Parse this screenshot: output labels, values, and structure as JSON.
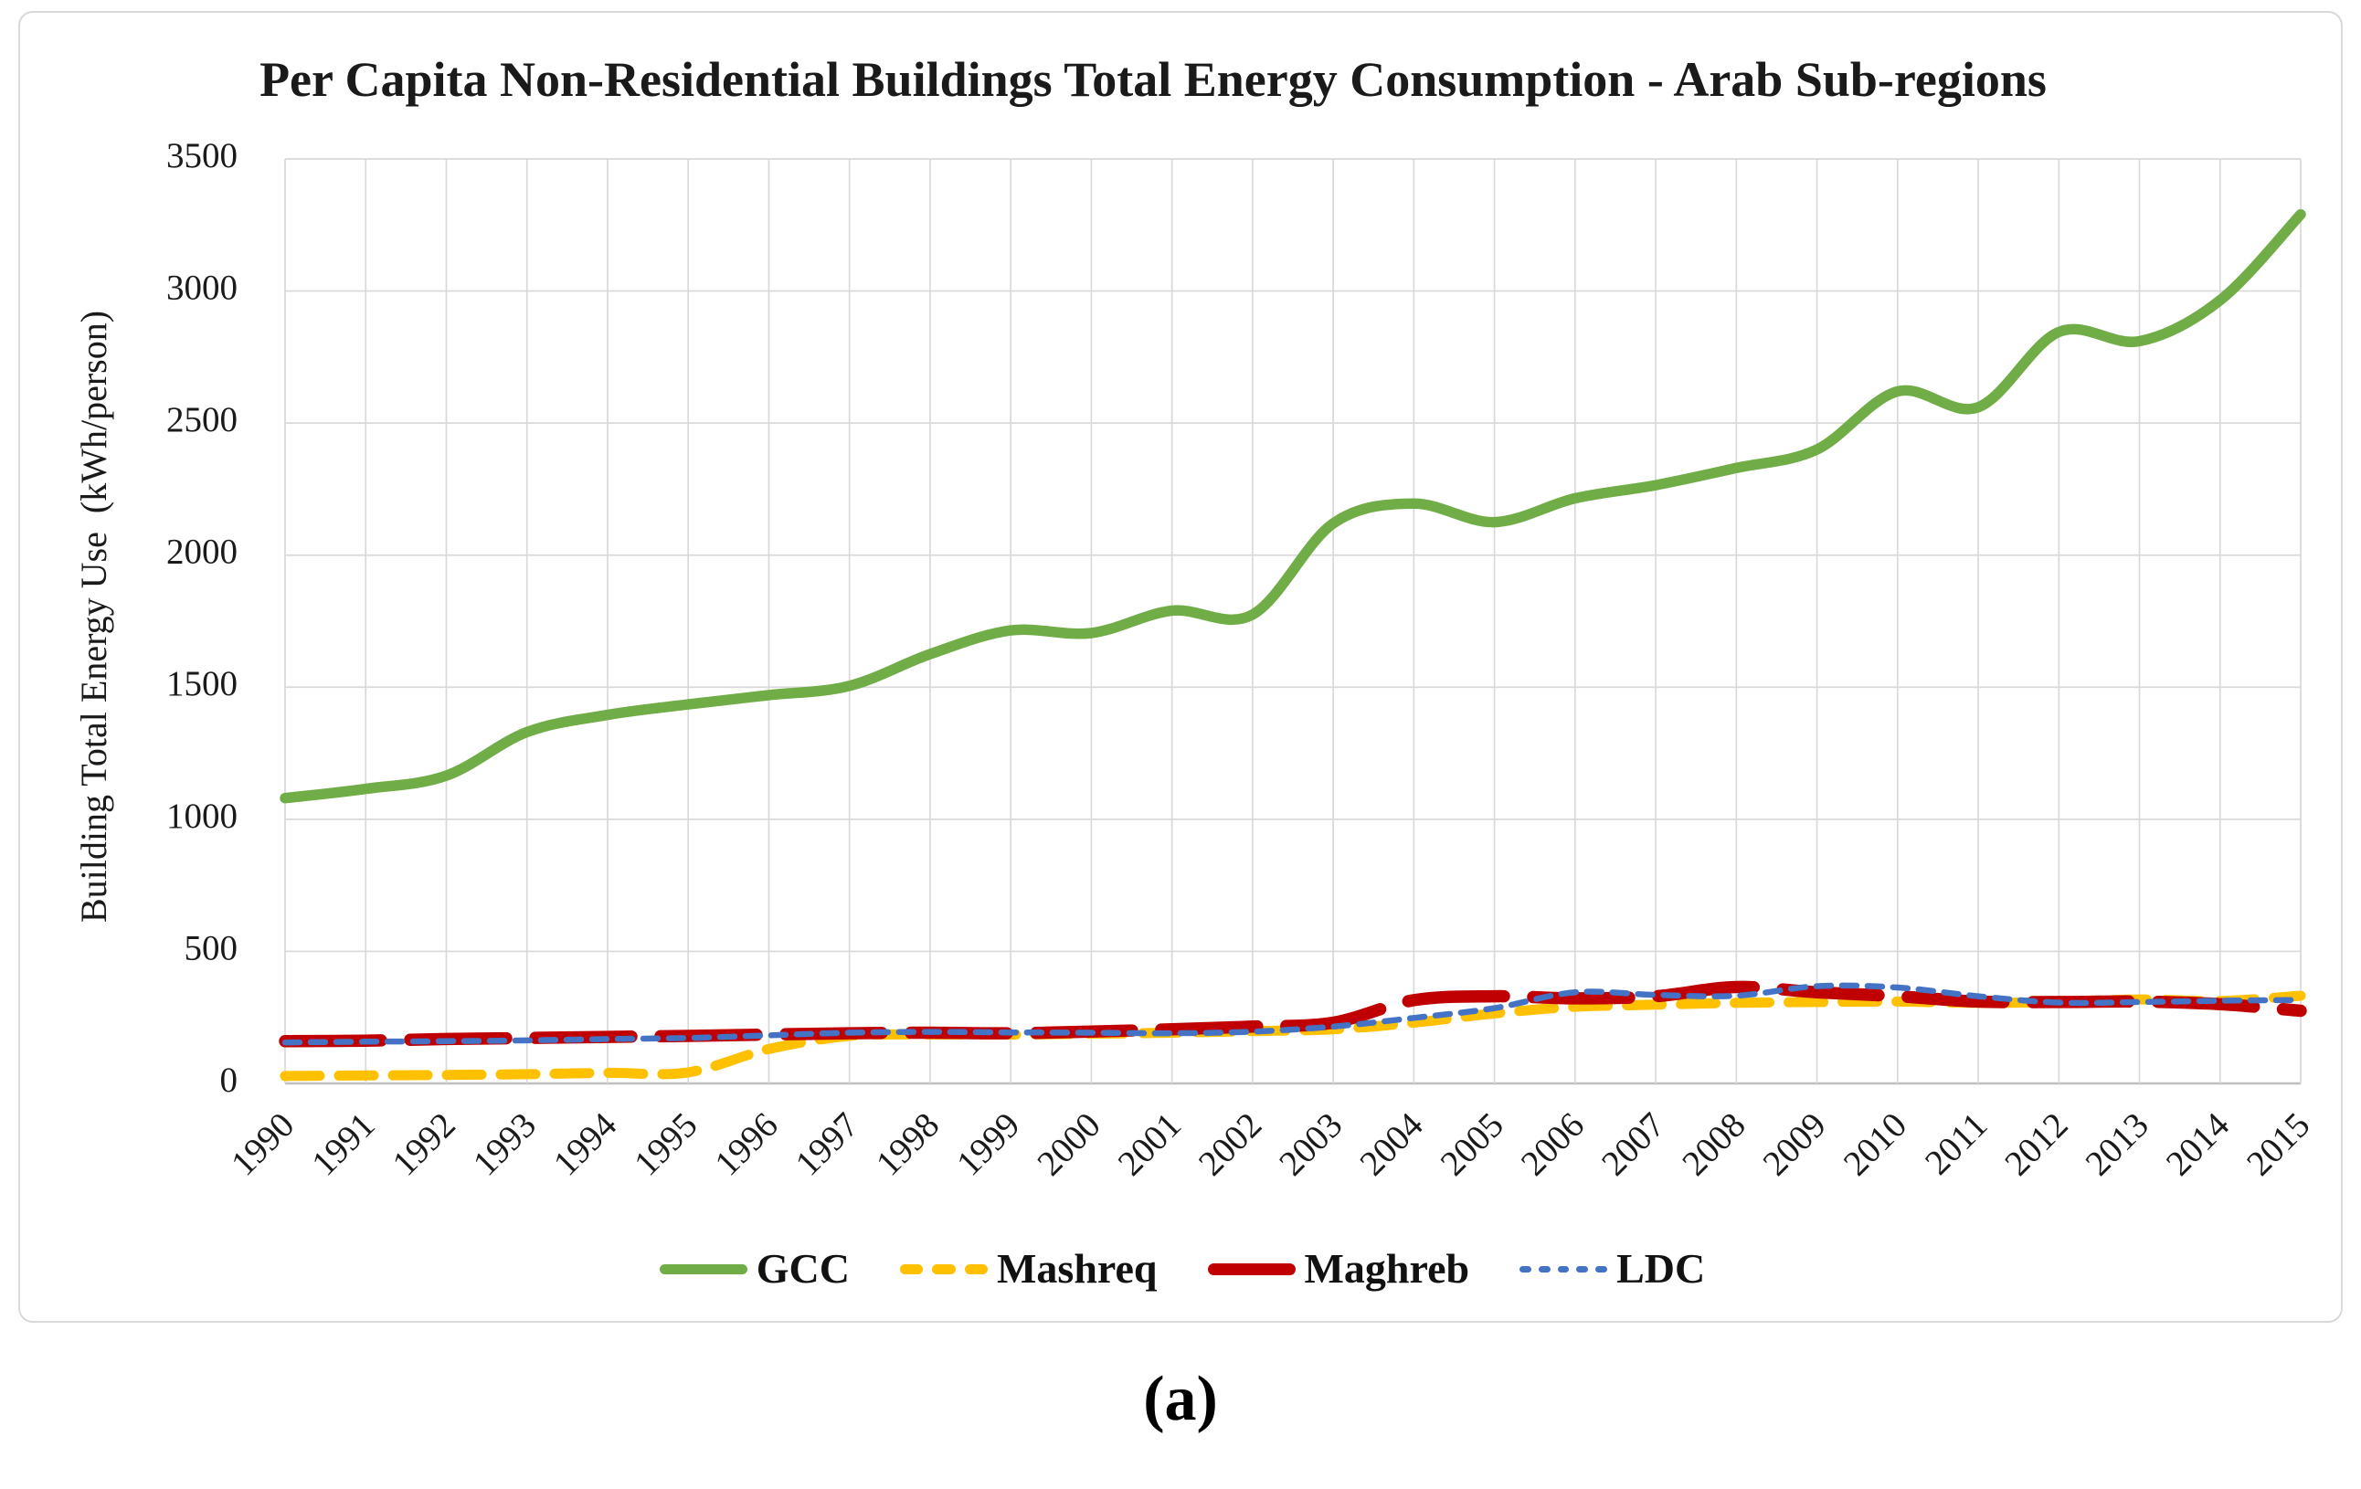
{
  "figure": {
    "caption": "(a)"
  },
  "chart": {
    "title": "Per Capita Non-Residential Buildings Total Energy Consumption - Arab Sub-regions",
    "y_axis_title": "Building Total Energy Use  (kWh/person)"
  },
  "colors": {
    "gridline": "#d9d9d9",
    "axis_line": "#bfbfbf",
    "text": "#1a1a1a",
    "background": "#ffffff",
    "gcc_green": "#70AD47",
    "mashreq_yellow": "#FFC000",
    "maghreb_red": "#C00000",
    "ldc_blue": "#4472C4"
  },
  "chart_data": {
    "type": "line",
    "title": "Per Capita Non-Residential Buildings Total Energy Consumption - Arab Sub-regions",
    "xlabel": "",
    "ylabel": "Building Total Energy Use (kWh/person)",
    "x_labels": [
      "1990",
      "1991",
      "1992",
      "1993",
      "1994",
      "1995",
      "1996",
      "1997",
      "1998",
      "1999",
      "2000",
      "2001",
      "2002",
      "2003",
      "2004",
      "2005",
      "2006",
      "2007",
      "2008",
      "2009",
      "2010",
      "2011",
      "2012",
      "2013",
      "2014",
      "2015"
    ],
    "ylim": [
      0,
      3500
    ],
    "ytick_step": 500,
    "grid": true,
    "legend_position": "bottom",
    "line_smoothing": true,
    "series": [
      {
        "name": "GCC",
        "color": "#70AD47",
        "line_style": "solid",
        "stroke_width": 11.5,
        "dash": null,
        "swatch_segments": 1,
        "swatch_height": 11,
        "values": [
          1080,
          1115,
          1165,
          1330,
          1395,
          1435,
          1470,
          1505,
          1625,
          1715,
          1705,
          1790,
          1775,
          2120,
          2195,
          2125,
          2215,
          2265,
          2330,
          2400,
          2620,
          2560,
          2845,
          2810,
          2965,
          3290
        ]
      },
      {
        "name": "Mashreq",
        "color": "#FFC000",
        "line_style": "dashed",
        "stroke_width": 11,
        "dash": [
          38,
          21
        ],
        "swatch_segments": 3,
        "swatch_height": 11,
        "values": [
          28,
          30,
          32,
          35,
          40,
          42,
          130,
          180,
          185,
          185,
          188,
          192,
          198,
          205,
          230,
          265,
          290,
          298,
          305,
          308,
          310,
          305,
          308,
          318,
          312,
          332
        ]
      },
      {
        "name": "Maghreb",
        "color": "#C00000",
        "line_style": "long-dash",
        "stroke_width": 13.5,
        "dash": [
          105,
          32
        ],
        "swatch_segments": 1,
        "swatch_height": 13,
        "values": [
          160,
          162,
          168,
          172,
          176,
          180,
          185,
          190,
          192,
          190,
          196,
          205,
          215,
          230,
          315,
          330,
          322,
          330,
          365,
          345,
          330,
          310,
          308,
          310,
          300,
          275
        ]
      },
      {
        "name": "LDC",
        "color": "#4472C4",
        "line_style": "dotted",
        "stroke_width": 6.5,
        "dash": [
          16,
          12
        ],
        "swatch_segments": 5,
        "swatch_height": 7,
        "values": [
          155,
          158,
          160,
          163,
          168,
          172,
          182,
          192,
          195,
          193,
          192,
          190,
          196,
          215,
          248,
          285,
          345,
          335,
          332,
          368,
          363,
          330,
          306,
          308,
          313,
          316
        ]
      }
    ]
  }
}
